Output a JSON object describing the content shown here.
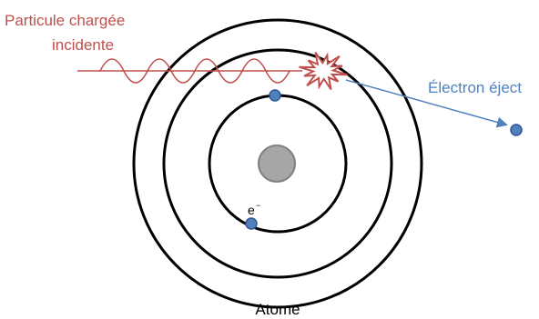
{
  "labels": {
    "incident": [
      "Particule chargée",
      "incidente"
    ],
    "ejected": "Électron éject",
    "electron": "e",
    "electron_charge": "−",
    "atom": "Atome"
  }
}
